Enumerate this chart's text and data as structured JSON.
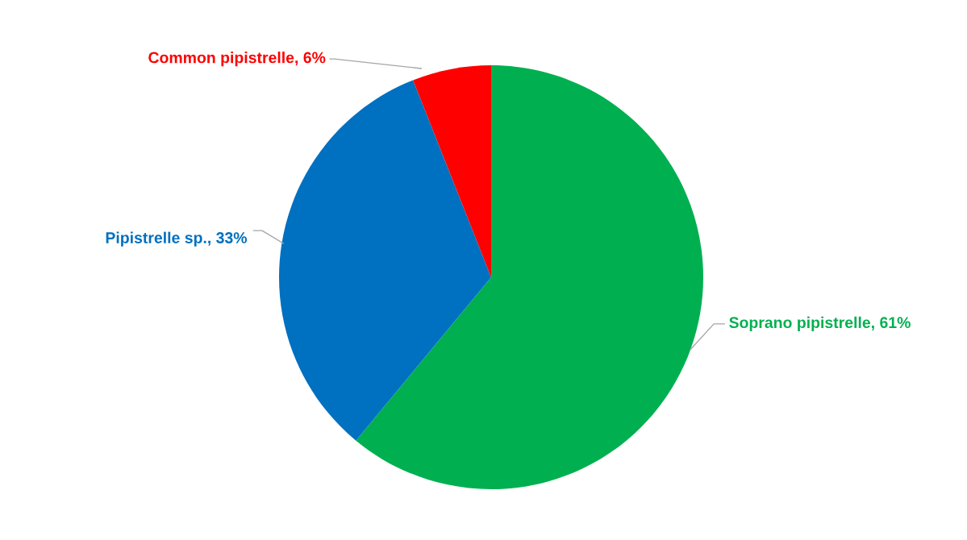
{
  "chart_data": {
    "type": "pie",
    "categories": [
      "Soprano pipistrelle",
      "Pipistrelle sp.",
      "Common pipistrelle"
    ],
    "values": [
      61,
      33,
      6
    ],
    "value_labels": [
      "61%",
      "33%",
      "6%"
    ],
    "colors": [
      "#00b050",
      "#0070c0",
      "#ff0000"
    ],
    "legend": false
  }
}
